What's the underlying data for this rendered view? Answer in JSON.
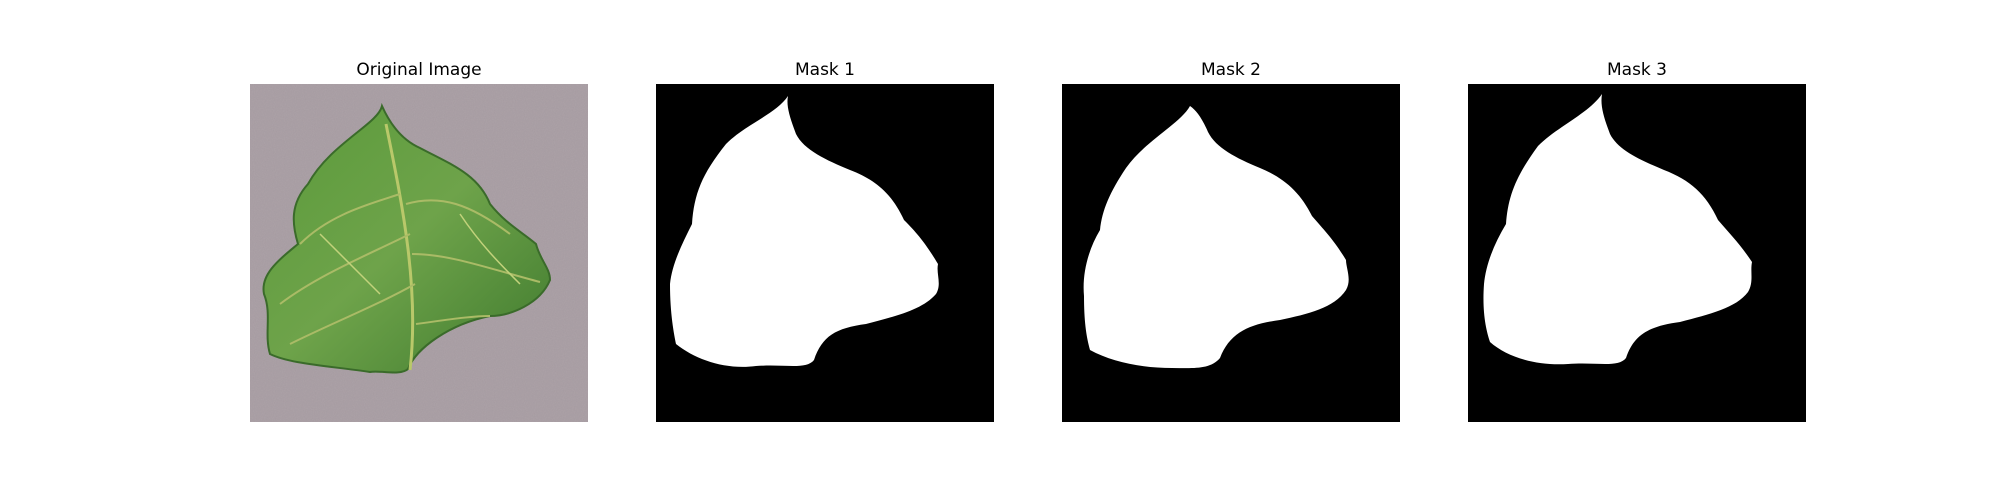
{
  "panels": [
    {
      "title": "Original Image"
    },
    {
      "title": "Mask 1"
    },
    {
      "title": "Mask 2"
    },
    {
      "title": "Mask 3"
    }
  ],
  "colors": {
    "background": "#a59aa0",
    "leaf_dark": "#3f7a2e",
    "leaf_light": "#6ea34a",
    "vein": "#b9c86a",
    "mask_bg": "#000000",
    "mask_fg": "#ffffff"
  }
}
